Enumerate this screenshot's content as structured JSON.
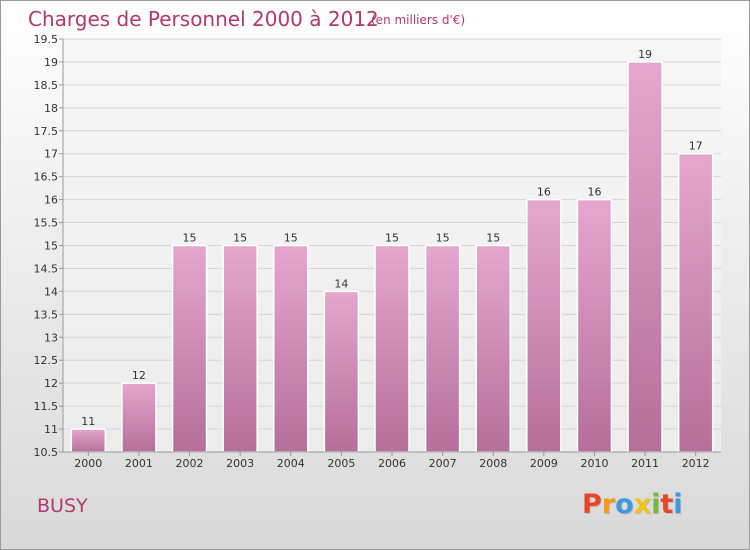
{
  "title": "Charges de Personnel 2000 à 2012",
  "subtitle": "(en milliers d'€)",
  "town": "BUSY",
  "logo": {
    "text": "Proxiti",
    "colors": [
      "#e8472a",
      "#f39a1e",
      "#3d9bd9",
      "#f0c419",
      "#7ab83a",
      "#e8472a",
      "#3d9bd9"
    ]
  },
  "colors": {
    "bar_top": "#e5a7cd",
    "bar_bottom": "#b56f98",
    "title": "#b3386e"
  },
  "chart_data": {
    "type": "bar",
    "categories": [
      "2000",
      "2001",
      "2002",
      "2003",
      "2004",
      "2005",
      "2006",
      "2007",
      "2008",
      "2009",
      "2010",
      "2011",
      "2012"
    ],
    "values": [
      11,
      12,
      15,
      15,
      15,
      14,
      15,
      15,
      15,
      16,
      16,
      19,
      17
    ],
    "data_labels": [
      "11",
      "12",
      "15",
      "15",
      "15",
      "14",
      "15",
      "15",
      "15",
      "16",
      "16",
      "19",
      "17"
    ],
    "title": "Charges de Personnel 2000 à 2012",
    "subtitle": "(en milliers d'€)",
    "xlabel": "",
    "ylabel": "",
    "ylim": [
      10.5,
      19.5
    ],
    "yticks": [
      "10.5",
      "11",
      "11.5",
      "12",
      "12.5",
      "13",
      "13.5",
      "14",
      "14.5",
      "15",
      "15.5",
      "16",
      "16.5",
      "17",
      "17.5",
      "18",
      "18.5",
      "19",
      "19.5"
    ],
    "grid": true
  }
}
